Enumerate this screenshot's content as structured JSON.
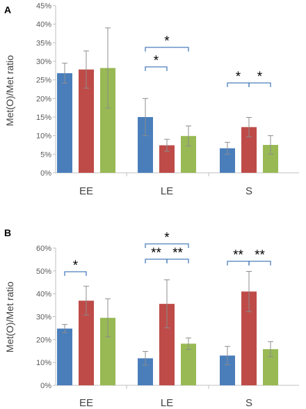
{
  "colors": {
    "series1": "#4a7ebb",
    "series2": "#be4b48",
    "series3": "#98b954",
    "bracket": "#4a7ebb",
    "errorbar": "#8c8c8c",
    "axis": "#bfbfbf"
  },
  "chart_data": [
    {
      "type": "bar",
      "panel_label": "A",
      "categories": [
        "EE",
        "LE",
        "S"
      ],
      "ylabel": "Met(O)/Met ratio",
      "ylim": [
        0,
        45
      ],
      "yticks": [
        "0%",
        "5%",
        "10%",
        "15%",
        "20%",
        "25%",
        "30%",
        "35%",
        "40%",
        "45%"
      ],
      "grid": false,
      "series": [
        {
          "values": [
            26.8,
            15.0,
            6.6
          ],
          "errors": [
            2.7,
            5.0,
            1.6
          ]
        },
        {
          "values": [
            27.8,
            7.4,
            12.3
          ],
          "errors": [
            5.0,
            1.6,
            2.6
          ]
        },
        {
          "values": [
            28.2,
            9.9,
            7.5
          ],
          "errors": [
            10.8,
            2.7,
            2.5
          ]
        }
      ],
      "significance": [
        {
          "category": "LE",
          "from": 0,
          "to": 1,
          "label": "*",
          "level": 0
        },
        {
          "category": "LE",
          "from": 0,
          "to": 2,
          "label": "*",
          "level": 1
        },
        {
          "category": "S",
          "from": 0,
          "to": 1,
          "label": "*",
          "level": 0
        },
        {
          "category": "S",
          "from": 1,
          "to": 2,
          "label": "*",
          "level": 0
        }
      ]
    },
    {
      "type": "bar",
      "panel_label": "B",
      "categories": [
        "EE",
        "LE",
        "S"
      ],
      "ylabel": "Met(O)/Met ratio",
      "ylim": [
        0,
        60
      ],
      "yticks": [
        "0%",
        "10%",
        "20%",
        "30%",
        "40%",
        "50%",
        "60%"
      ],
      "grid": false,
      "series": [
        {
          "values": [
            24.8,
            11.8,
            13.0
          ],
          "errors": [
            1.8,
            3.0,
            4.0
          ]
        },
        {
          "values": [
            37.0,
            35.6,
            41.0
          ],
          "errors": [
            6.3,
            10.5,
            8.8
          ]
        },
        {
          "values": [
            29.5,
            18.2,
            15.8
          ],
          "errors": [
            8.3,
            2.5,
            3.3
          ]
        }
      ],
      "significance": [
        {
          "category": "EE",
          "from": 0,
          "to": 1,
          "label": "*",
          "level": 0
        },
        {
          "category": "LE",
          "from": 0,
          "to": 1,
          "label": "**",
          "level": 0
        },
        {
          "category": "LE",
          "from": 1,
          "to": 2,
          "label": "**",
          "level": 0
        },
        {
          "category": "LE",
          "from": 0,
          "to": 2,
          "label": "*",
          "level": 1
        },
        {
          "category": "S",
          "from": 0,
          "to": 1,
          "label": "**",
          "level": 0
        },
        {
          "category": "S",
          "from": 1,
          "to": 2,
          "label": "**",
          "level": 0
        }
      ]
    }
  ]
}
